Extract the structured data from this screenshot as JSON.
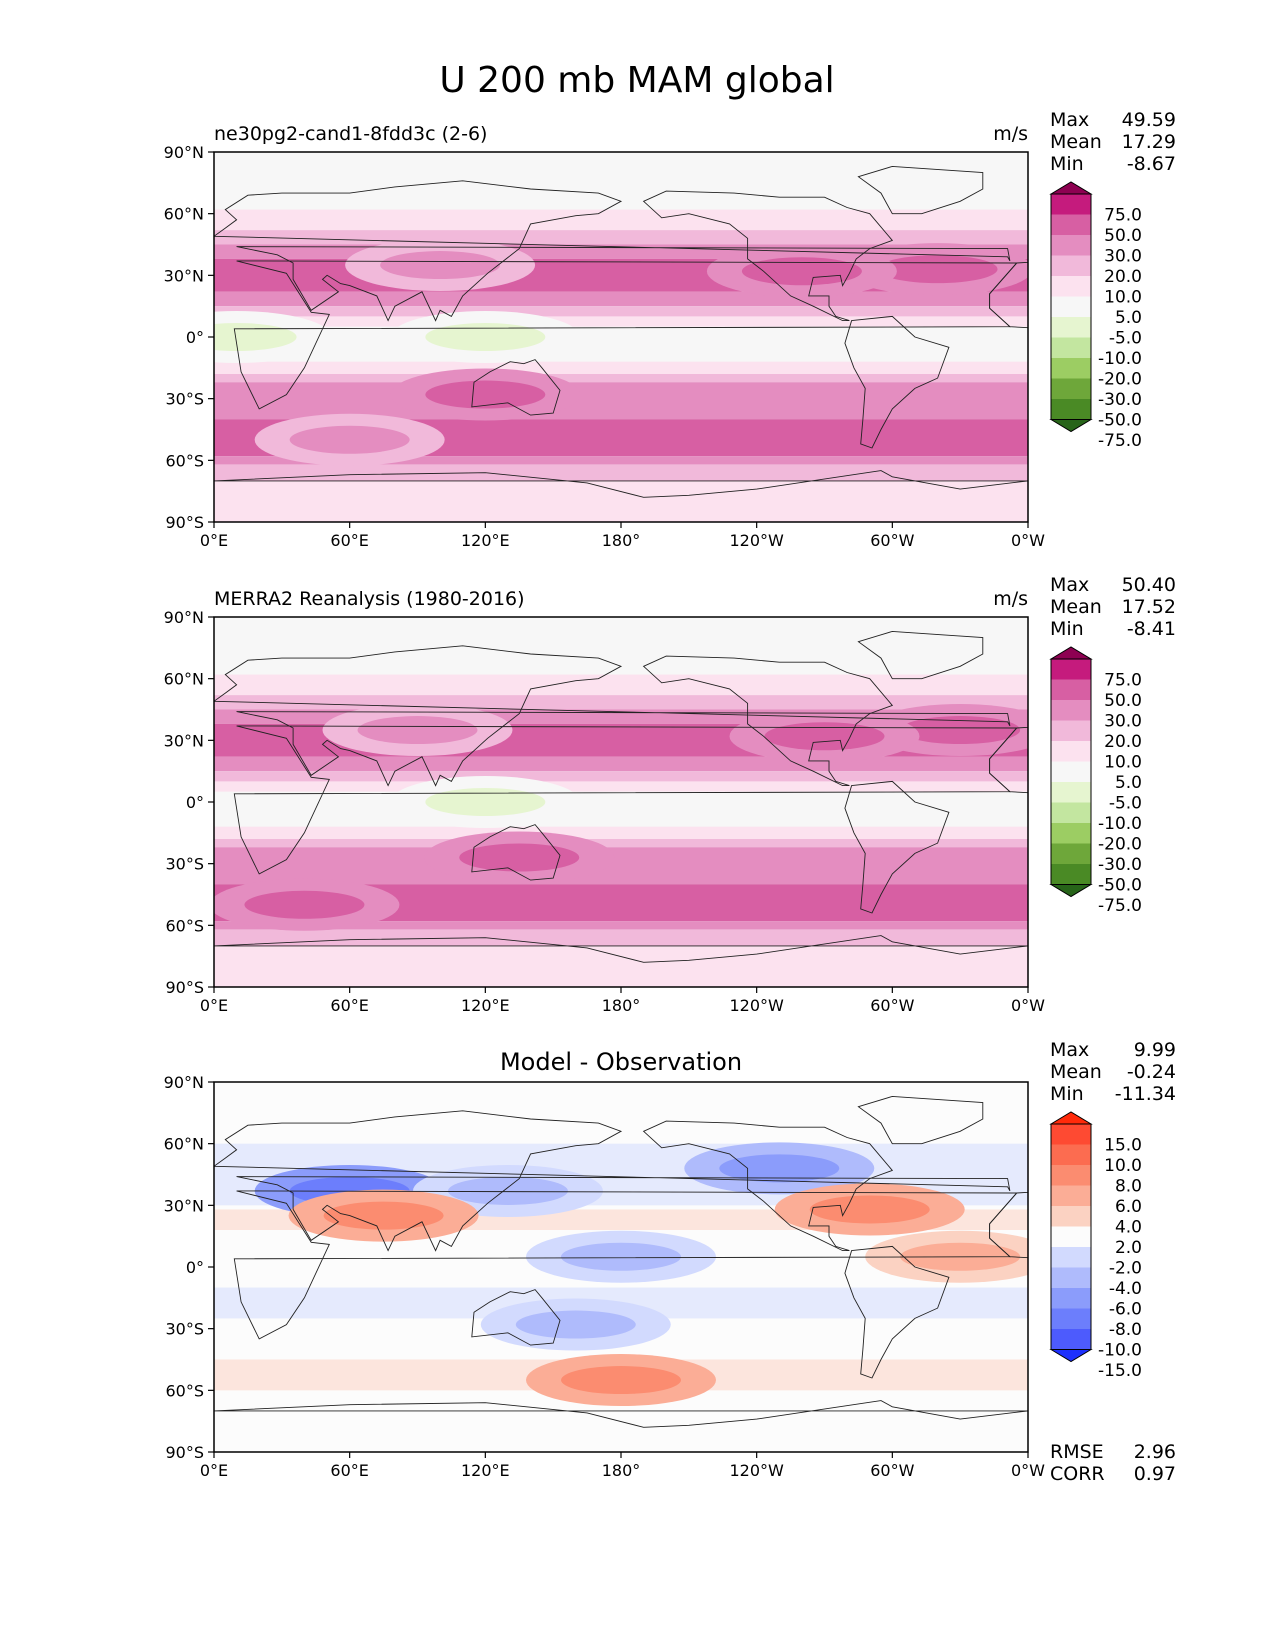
{
  "chart_data": {
    "type": "contour_map",
    "suptitle": "U 200 mb MAM global",
    "xticks": [
      "0°E",
      "60°E",
      "120°E",
      "180°",
      "120°W",
      "60°W",
      "0°W"
    ],
    "yticks": [
      "90°N",
      "60°N",
      "30°N",
      "0°",
      "30°S",
      "60°S",
      "90°S"
    ],
    "panels": [
      {
        "title_left": "ne30pg2-cand1-8fdd3c (2-6)",
        "title_center": "",
        "units": "m/s",
        "stats": {
          "labels": [
            "Max",
            "Mean",
            "Min"
          ],
          "values": [
            "49.59",
            "17.29",
            "-8.67"
          ]
        },
        "colorbar": {
          "levels": [
            "75.0",
            "50.0",
            "30.0",
            "20.0",
            "10.0",
            "5.0",
            "-5.0",
            "-10.0",
            "-20.0",
            "-30.0",
            "-50.0",
            "-75.0"
          ],
          "colors": [
            "#8e0152",
            "#c51b7d",
            "#d75fa3",
            "#e48dc0",
            "#f1b9da",
            "#fce2ef",
            "#f7f7f7",
            "#e6f5d0",
            "#c3e6a0",
            "#9ccd63",
            "#6ea73a",
            "#4a8a25",
            "#276419"
          ]
        },
        "fields": [
          {
            "lon": 320,
            "lat": 33,
            "value": 32
          },
          {
            "lon": 100,
            "lat": 35,
            "value": 28
          },
          {
            "lon": 60,
            "lat": -50,
            "value": 28
          },
          {
            "lon": 120,
            "lat": -28,
            "value": 32
          },
          {
            "lon": 260,
            "lat": 32,
            "value": 30
          },
          {
            "lon": 10,
            "lat": 0,
            "value": -6
          },
          {
            "lon": 120,
            "lat": 0,
            "value": -7
          }
        ],
        "rmse": "",
        "corr": ""
      },
      {
        "title_left": "MERRA2 Reanalysis (1980-2016)",
        "title_center": "",
        "units": "m/s",
        "stats": {
          "labels": [
            "Max",
            "Mean",
            "Min"
          ],
          "values": [
            "50.40",
            "17.52",
            "-8.41"
          ]
        },
        "colorbar": {
          "levels": [
            "75.0",
            "50.0",
            "30.0",
            "20.0",
            "10.0",
            "5.0",
            "-5.0",
            "-10.0",
            "-20.0",
            "-30.0",
            "-50.0",
            "-75.0"
          ],
          "colors": [
            "#8e0152",
            "#c51b7d",
            "#d75fa3",
            "#e48dc0",
            "#f1b9da",
            "#fce2ef",
            "#f7f7f7",
            "#e6f5d0",
            "#c3e6a0",
            "#9ccd63",
            "#6ea73a",
            "#4a8a25",
            "#276419"
          ]
        },
        "fields": [
          {
            "lon": 330,
            "lat": 35,
            "value": 35
          },
          {
            "lon": 90,
            "lat": 35,
            "value": 28
          },
          {
            "lon": 40,
            "lat": -50,
            "value": 30
          },
          {
            "lon": 135,
            "lat": -27,
            "value": 30
          },
          {
            "lon": 270,
            "lat": 32,
            "value": 30
          },
          {
            "lon": 120,
            "lat": 0,
            "value": -7
          }
        ],
        "rmse": "",
        "corr": ""
      },
      {
        "title_left": "",
        "title_center": "Model - Observation",
        "units": "",
        "stats": {
          "labels": [
            "Max",
            "Mean",
            "Min"
          ],
          "values": [
            "9.99",
            "-0.24",
            "-11.34"
          ]
        },
        "colorbar": {
          "levels": [
            "15.0",
            "10.0",
            "8.0",
            "6.0",
            "4.0",
            "2.0",
            "-2.0",
            "-4.0",
            "-6.0",
            "-8.0",
            "-10.0",
            "-15.0"
          ],
          "colors": [
            "#ff2a0a",
            "#fe4a32",
            "#fc6c50",
            "#fb8c70",
            "#fbad96",
            "#fbd2c2",
            "#fcfcfc",
            "#d2dafe",
            "#afbbfc",
            "#8b9cfb",
            "#6c7efc",
            "#4d5bfd",
            "#1d30fd"
          ]
        },
        "fields": [
          {
            "lon": 60,
            "lat": 37,
            "value": -9
          },
          {
            "lon": 130,
            "lat": 37,
            "value": -6
          },
          {
            "lon": 250,
            "lat": 48,
            "value": -7
          },
          {
            "lon": 75,
            "lat": 25,
            "value": 7
          },
          {
            "lon": 180,
            "lat": -55,
            "value": 6
          },
          {
            "lon": 290,
            "lat": 28,
            "value": 6
          },
          {
            "lon": 330,
            "lat": 5,
            "value": 5
          },
          {
            "lon": 160,
            "lat": -28,
            "value": -6
          },
          {
            "lon": 180,
            "lat": 5,
            "value": -5
          }
        ],
        "rmse": "2.96",
        "corr": "0.97"
      }
    ]
  },
  "footer_labels": {
    "rmse": "RMSE",
    "corr": "CORR"
  }
}
